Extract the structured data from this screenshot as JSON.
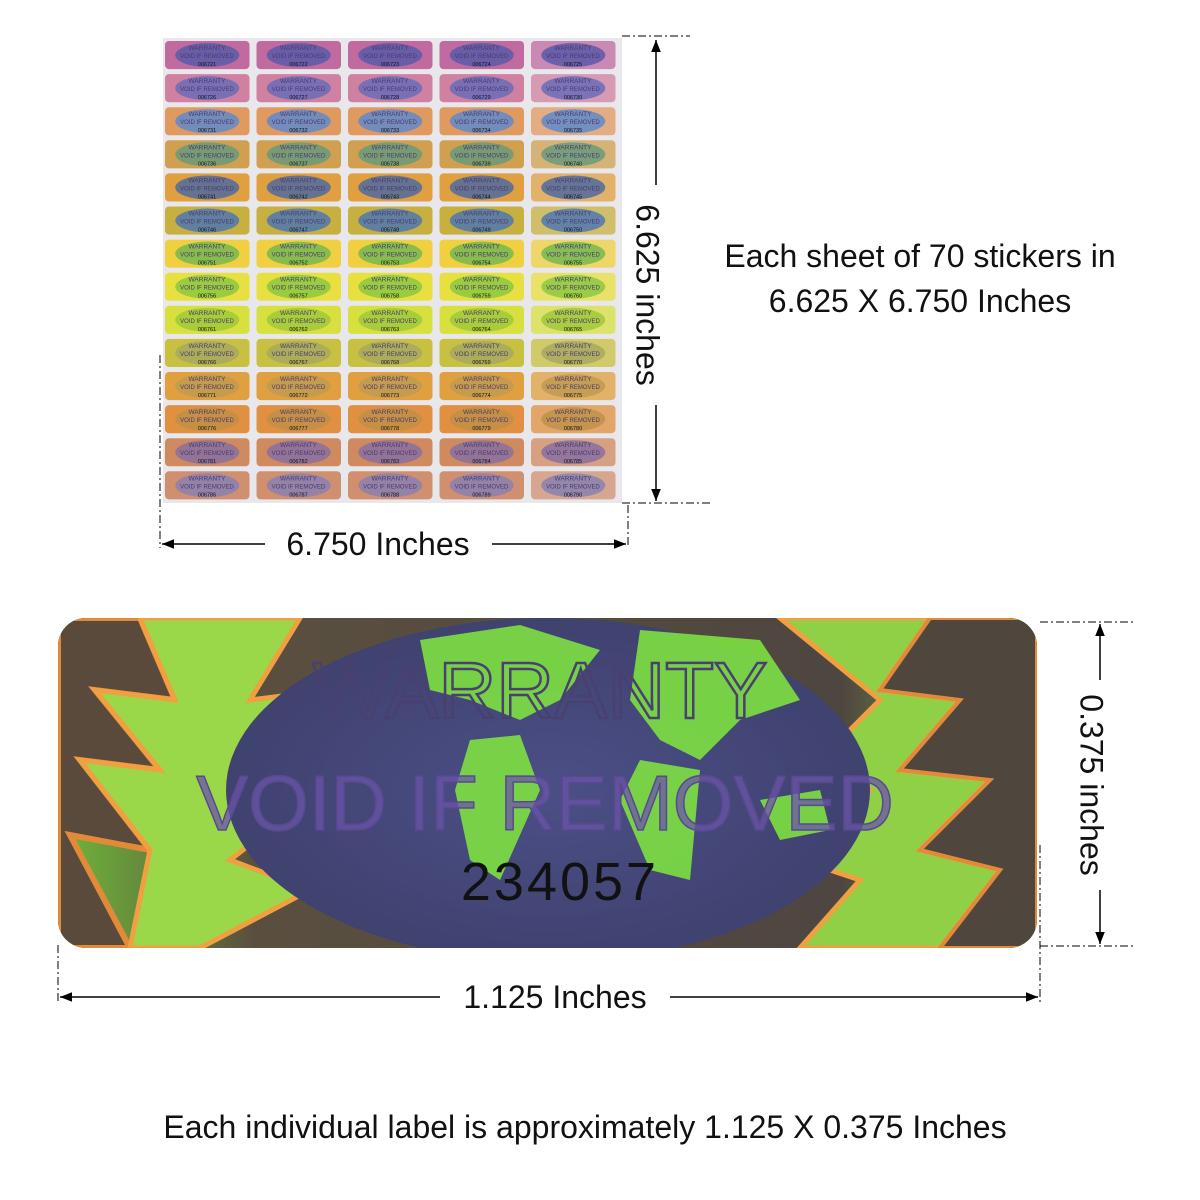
{
  "sheet": {
    "sticker_title": "WARRANTY",
    "sticker_subtitle": "VOID IF REMOVED",
    "serials": [
      "006721",
      "006722",
      "006723",
      "006724",
      "006725",
      "006726",
      "006727",
      "006728",
      "006729",
      "006730",
      "006731",
      "006732",
      "006733",
      "006734",
      "006735",
      "006736",
      "006737",
      "006738",
      "006739",
      "006740",
      "006741",
      "006742",
      "006743",
      "006744",
      "006745",
      "006746",
      "006747",
      "006748",
      "006749",
      "006750",
      "006751",
      "006752",
      "006753",
      "006754",
      "006755",
      "006756",
      "006757",
      "006758",
      "006759",
      "006760",
      "006761",
      "006762",
      "006763",
      "006764",
      "006765",
      "006766",
      "006767",
      "006768",
      "006769",
      "006770",
      "006771",
      "006772",
      "006773",
      "006774",
      "006775",
      "006776",
      "006777",
      "006778",
      "006779",
      "006780",
      "006781",
      "006782",
      "006783",
      "006784",
      "006785",
      "006786",
      "006787",
      "006788",
      "006789",
      "006790"
    ]
  },
  "sheet_height_label": "6.625 inches",
  "sheet_width_label": "6.750 Inches",
  "sheet_caption": [
    "Each sheet of 70 stickers in",
    "6.625 X 6.750 Inches"
  ],
  "label": {
    "title": "WARRANTY",
    "subtitle": "VOID IF REMOVED",
    "serial": "234057"
  },
  "label_height_label": "0.375 inches",
  "label_width_label": "1.125 Inches",
  "caption": "Each individual label is approximately 1.125 X 0.375 Inches"
}
